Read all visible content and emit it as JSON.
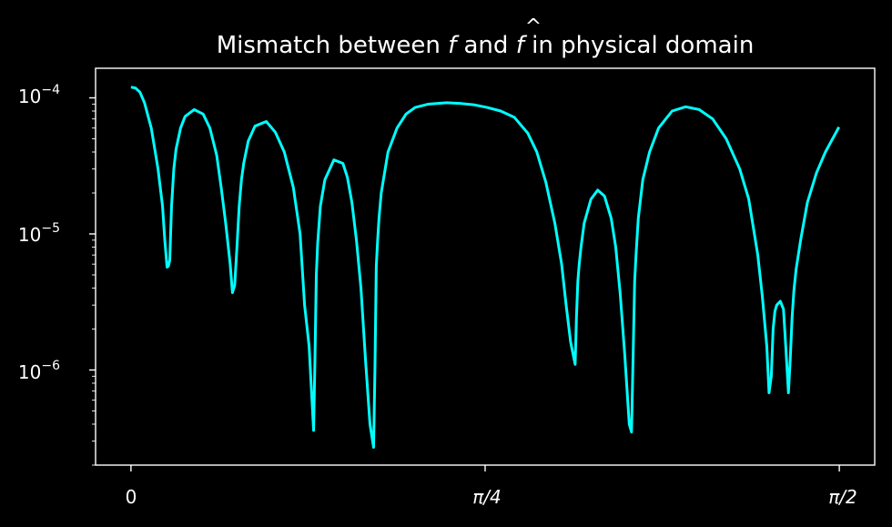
{
  "chart_data": {
    "type": "line",
    "title_parts": {
      "before": "Mismatch between ",
      "f": "f",
      "middle": " and ",
      "fhat": "f",
      "hat": "^",
      "after": " in physical domain"
    },
    "xlabel": "",
    "ylabel": "",
    "yscale": "log",
    "xlim": [
      -0.0785,
      1.6493
    ],
    "ylim": [
      2e-07,
      0.000165
    ],
    "grid": false,
    "xticks": [
      {
        "value": 0,
        "label": "0"
      },
      {
        "value": 0.7854,
        "label": "π/4"
      },
      {
        "value": 1.5708,
        "label": "π/2"
      }
    ],
    "yticks": [
      {
        "value": 0.0001,
        "base": "10",
        "exp": "−4"
      },
      {
        "value": 1e-05,
        "base": "10",
        "exp": "−5"
      },
      {
        "value": 1e-06,
        "base": "10",
        "exp": "−6"
      }
    ],
    "line_color": "#00ffff",
    "series": [
      {
        "x": [
          0,
          0.01,
          0.02,
          0.03,
          0.045,
          0.06,
          0.07,
          0.075,
          0.08,
          0.083,
          0.086,
          0.09,
          0.095,
          0.1,
          0.11,
          0.12,
          0.14,
          0.16,
          0.175,
          0.19,
          0.2,
          0.21,
          0.22,
          0.225,
          0.23,
          0.235,
          0.24,
          0.245,
          0.25,
          0.26,
          0.275,
          0.3,
          0.32,
          0.34,
          0.36,
          0.375,
          0.385,
          0.395,
          0.405,
          0.408,
          0.411,
          0.414,
          0.42,
          0.43,
          0.45,
          0.47,
          0.48,
          0.49,
          0.5,
          0.51,
          0.52,
          0.53,
          0.538,
          0.541,
          0.544,
          0.547,
          0.55,
          0.555,
          0.57,
          0.59,
          0.61,
          0.63,
          0.66,
          0.7,
          0.73,
          0.76,
          0.79,
          0.82,
          0.85,
          0.88,
          0.9,
          0.92,
          0.94,
          0.955,
          0.965,
          0.975,
          0.985,
          0.988,
          0.991,
          0.994,
          0.998,
          1.005,
          1.02,
          1.035,
          1.05,
          1.065,
          1.075,
          1.085,
          1.095,
          1.105,
          1.11,
          1.114,
          1.117,
          1.12,
          1.125,
          1.135,
          1.15,
          1.17,
          1.2,
          1.23,
          1.26,
          1.29,
          1.32,
          1.35,
          1.37,
          1.39,
          1.4,
          1.41,
          1.415,
          1.42,
          1.424,
          1.428,
          1.432,
          1.44,
          1.447,
          1.452,
          1.458,
          1.462,
          1.466,
          1.47,
          1.475,
          1.485,
          1.5,
          1.52,
          1.54,
          1.56,
          1.57
        ],
        "y": [
          0.00012,
          0.000118,
          0.00011,
          9.2e-05,
          6e-05,
          3e-05,
          1.6e-05,
          9e-06,
          5.7e-06,
          5.8e-06,
          6.4e-06,
          1.6e-05,
          3e-05,
          4.2e-05,
          6e-05,
          7.3e-05,
          8.2e-05,
          7.6e-05,
          6e-05,
          3.8e-05,
          2.2e-05,
          1.2e-05,
          6e-06,
          3.7e-06,
          4.2e-06,
          8e-06,
          1.6e-05,
          2.5e-05,
          3.3e-05,
          4.8e-05,
          6.2e-05,
          6.7e-05,
          5.6e-05,
          4e-05,
          2.2e-05,
          1e-05,
          3e-06,
          1.5e-06,
          3.6e-07,
          1.2e-06,
          5e-06,
          8.5e-06,
          1.6e-05,
          2.5e-05,
          3.5e-05,
          3.3e-05,
          2.6e-05,
          1.7e-05,
          9e-06,
          4e-06,
          1.2e-06,
          4e-07,
          2.7e-07,
          1e-06,
          5.8e-06,
          9e-06,
          1.3e-05,
          2e-05,
          4e-05,
          6e-05,
          7.6e-05,
          8.5e-05,
          9e-05,
          9.2e-05,
          9.1e-05,
          8.9e-05,
          8.5e-05,
          8e-05,
          7.2e-05,
          5.5e-05,
          4e-05,
          2.4e-05,
          1.2e-05,
          6e-06,
          3e-06,
          1.6e-06,
          1.1e-06,
          2.5e-06,
          4.5e-06,
          6e-06,
          8e-06,
          1.2e-05,
          1.8e-05,
          2.1e-05,
          1.9e-05,
          1.3e-05,
          8e-06,
          3.6e-06,
          1.3e-06,
          4e-07,
          3.5e-07,
          1.5e-06,
          4.5e-06,
          7e-06,
          1.3e-05,
          2.5e-05,
          4e-05,
          6e-05,
          8e-05,
          8.6e-05,
          8.2e-05,
          7e-05,
          5e-05,
          3e-05,
          1.8e-05,
          7e-06,
          3.5e-06,
          1.5e-06,
          6.8e-07,
          9e-07,
          2e-06,
          2.7e-06,
          3e-06,
          3.2e-06,
          2.8e-06,
          1.5e-06,
          6.8e-07,
          1.2e-06,
          2.4e-06,
          3.8e-06,
          5.5e-06,
          9e-06,
          1.7e-05,
          2.8e-05,
          4e-05,
          5.3e-05,
          6.1e-05
        ]
      }
    ]
  }
}
